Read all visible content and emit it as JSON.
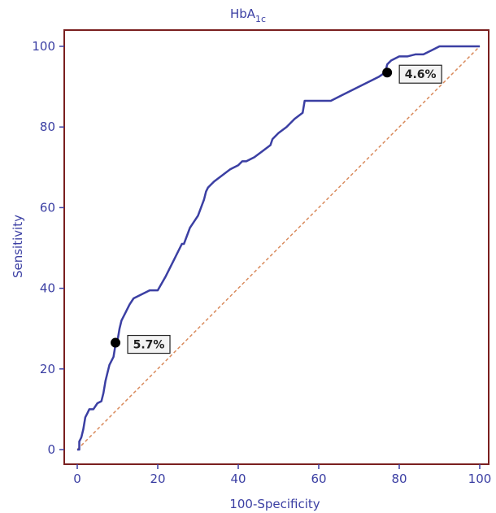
{
  "chart_data": {
    "type": "line",
    "title": "HbA",
    "title_subscript": "1c",
    "xlabel": "100-Specificity",
    "ylabel": "Sensitivity",
    "xlim": [
      0,
      100
    ],
    "ylim": [
      0,
      100
    ],
    "x_ticks": [
      "0",
      "20",
      "40",
      "60",
      "80",
      "100"
    ],
    "y_ticks": [
      "0",
      "20",
      "40",
      "60",
      "80",
      "100"
    ],
    "grid": false,
    "colors": {
      "roc": "#3b3fa3",
      "reference": "#d98a5c",
      "frame": "#7a1f1f",
      "text": "#3b3fa3"
    },
    "series": [
      {
        "x": [
          0,
          0.5,
          0.5,
          1,
          1.5,
          2,
          2.5,
          3,
          4,
          5,
          6,
          6.5,
          7,
          7.5,
          8,
          9,
          9.5,
          10,
          10.5,
          11,
          12,
          13,
          14,
          15,
          18,
          20,
          22,
          24,
          26,
          26.5,
          28,
          30,
          31.5,
          32,
          32.5,
          34,
          36,
          38,
          40,
          41,
          42,
          44,
          46,
          48,
          48.5,
          50,
          52,
          54,
          56,
          56.5,
          58,
          60,
          63,
          66,
          70,
          73,
          75,
          76.5,
          77,
          77.5,
          78,
          80,
          82,
          84,
          86,
          88,
          90,
          92,
          94,
          96,
          98,
          100
        ],
        "y": [
          0,
          0,
          2,
          3,
          5,
          8,
          9,
          10,
          10,
          11.5,
          12,
          14,
          17,
          19,
          21,
          23,
          26,
          27,
          30,
          32,
          34,
          36,
          37.5,
          38,
          39.5,
          39.5,
          43,
          47,
          51,
          51,
          55,
          58,
          62,
          64,
          65,
          66.5,
          68,
          69.5,
          70.5,
          71.5,
          71.5,
          72.5,
          74,
          75.5,
          77,
          78.5,
          80,
          82,
          83.5,
          86.5,
          86.5,
          86.5,
          86.5,
          88,
          90,
          91.5,
          92.5,
          93.5,
          95.5,
          96,
          96.5,
          97.5,
          97.5,
          98,
          98,
          99,
          100,
          100,
          100,
          100,
          100,
          100
        ]
      },
      {
        "x": [
          0,
          100
        ],
        "y": [
          0,
          100
        ]
      }
    ],
    "points": [
      {
        "label": "5.7%",
        "x": 9.5,
        "y": 26.5
      },
      {
        "label": "4.6%",
        "x": 77,
        "y": 93.5
      }
    ]
  }
}
